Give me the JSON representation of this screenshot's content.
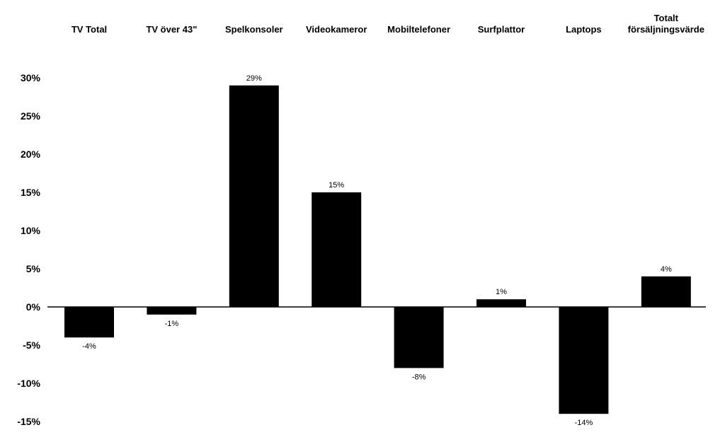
{
  "chart_data": {
    "type": "bar",
    "title": "",
    "xlabel": "",
    "ylabel": "",
    "categories": [
      [
        "TV Total"
      ],
      [
        "TV över 43\""
      ],
      [
        "Spelkonsoler"
      ],
      [
        "Videokameror"
      ],
      [
        "Mobiltelefoner"
      ],
      [
        "Surfplattor"
      ],
      [
        "Laptops"
      ],
      [
        "Totalt",
        "försäljningsvärde"
      ]
    ],
    "values": [
      -4,
      -1,
      29,
      15,
      -8,
      1,
      -14,
      4
    ],
    "data_labels": [
      "-4%",
      "-1%",
      "29%",
      "15%",
      "-8%",
      "1%",
      "-14%",
      "4%"
    ],
    "y_ticks": [
      30,
      25,
      20,
      15,
      10,
      5,
      0,
      -5,
      -10,
      -15
    ],
    "y_tick_labels": [
      "30%",
      "25%",
      "20%",
      "15%",
      "10%",
      "5%",
      "0%",
      "-5%",
      "-10%",
      "-15%"
    ],
    "ylim": [
      -15,
      30
    ],
    "grid": false,
    "legend": "none",
    "colors": {
      "bar": "#000000",
      "axis": "#000000",
      "text": "#000000",
      "background": "#ffffff"
    }
  }
}
